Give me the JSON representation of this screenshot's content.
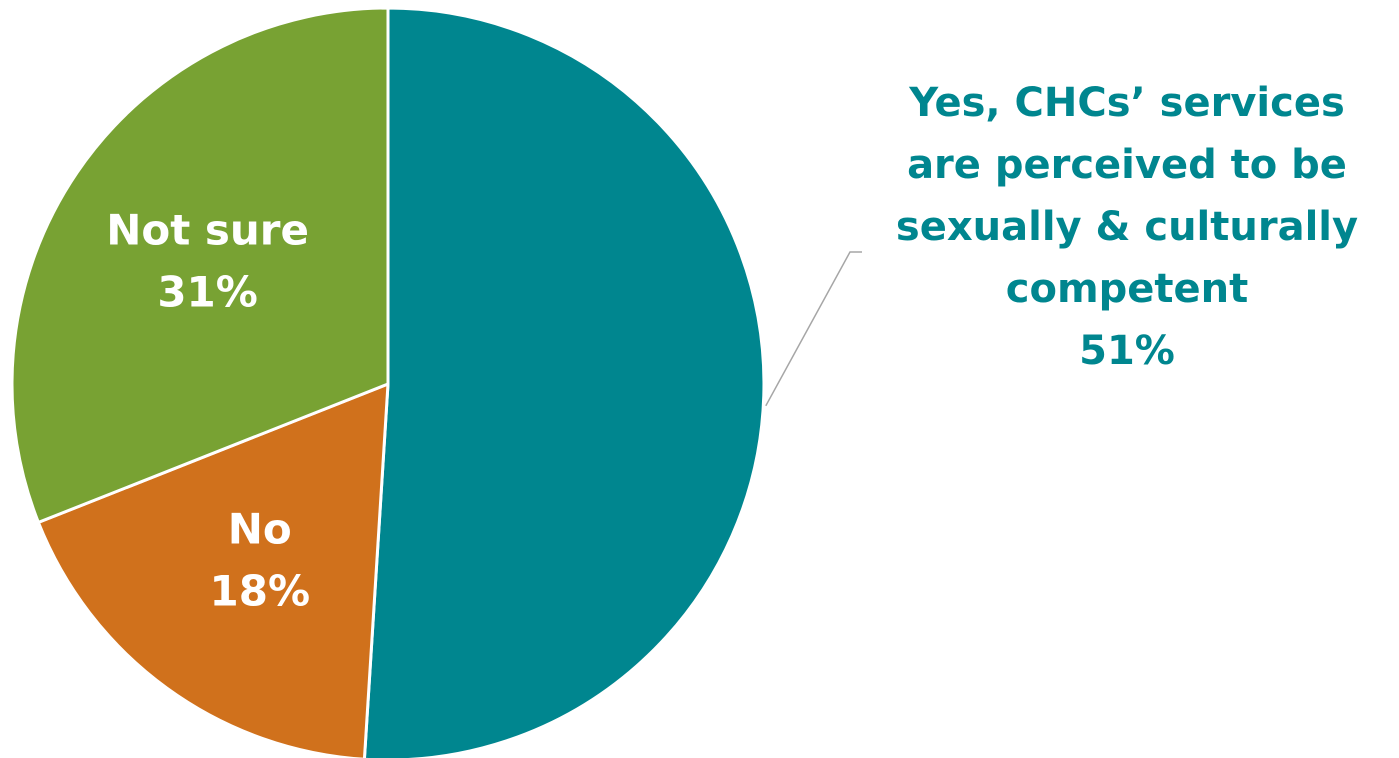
{
  "chart_data": {
    "type": "pie",
    "title": "",
    "start_angle_deg": 0,
    "direction": "clockwise",
    "slices": [
      {
        "key": "yes",
        "value": 51,
        "color": "#00868f",
        "label_lines": [
          "Yes, CHCs’ services",
          "are perceived to be",
          "sexually & culturally",
          "competent"
        ],
        "value_label": "51%",
        "label_position": "outside-right",
        "label_color": "#00868f"
      },
      {
        "key": "no",
        "value": 18,
        "color": "#d0711c",
        "label_lines": [
          "No"
        ],
        "value_label": "18%",
        "label_position": "inside",
        "label_color": "#ffffff"
      },
      {
        "key": "not-sure",
        "value": 31,
        "color": "#78a233",
        "label_lines": [
          "Not sure"
        ],
        "value_label": "31%",
        "label_position": "inside",
        "label_color": "#ffffff"
      }
    ],
    "legend": "none"
  }
}
